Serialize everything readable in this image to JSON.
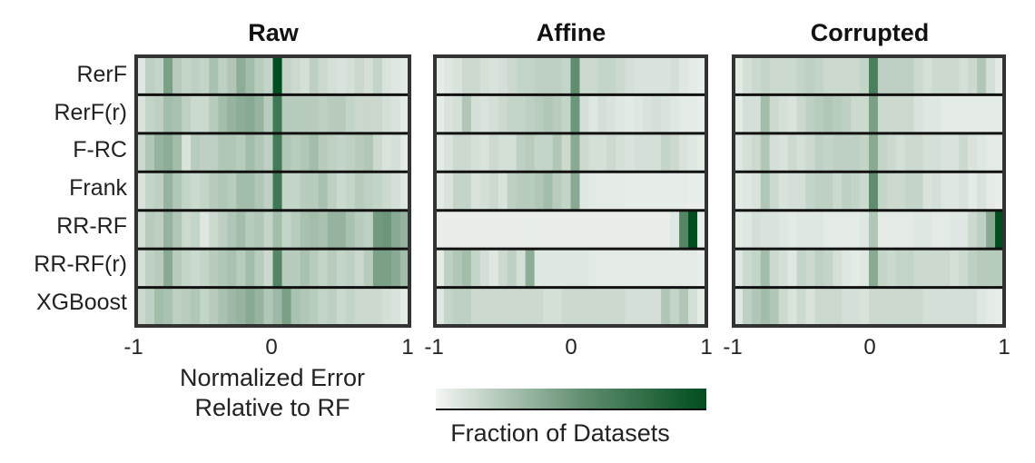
{
  "chart_data": {
    "type": "heatmap",
    "panels": [
      {
        "title": "Raw",
        "rows": [
          [
            0.08,
            0.2,
            0.18,
            0.45,
            0.22,
            0.18,
            0.2,
            0.18,
            0.28,
            0.2,
            0.25,
            0.38,
            0.3,
            0.22,
            0.18,
            1.0,
            0.18,
            0.15,
            0.12,
            0.2,
            0.15,
            0.12,
            0.1,
            0.12,
            0.16,
            0.12,
            0.18,
            0.1,
            0.08,
            0.06
          ],
          [
            0.1,
            0.18,
            0.2,
            0.3,
            0.28,
            0.2,
            0.15,
            0.15,
            0.22,
            0.3,
            0.35,
            0.38,
            0.4,
            0.35,
            0.22,
            0.7,
            0.22,
            0.22,
            0.22,
            0.22,
            0.2,
            0.22,
            0.22,
            0.18,
            0.16,
            0.16,
            0.16,
            0.12,
            0.1,
            0.06
          ],
          [
            0.15,
            0.25,
            0.35,
            0.38,
            0.3,
            0.1,
            0.22,
            0.2,
            0.2,
            0.25,
            0.25,
            0.22,
            0.3,
            0.25,
            0.2,
            0.68,
            0.25,
            0.22,
            0.25,
            0.3,
            0.22,
            0.2,
            0.18,
            0.2,
            0.22,
            0.25,
            0.15,
            0.1,
            0.12,
            0.06
          ],
          [
            0.1,
            0.18,
            0.2,
            0.35,
            0.25,
            0.18,
            0.15,
            0.18,
            0.22,
            0.25,
            0.22,
            0.3,
            0.3,
            0.25,
            0.2,
            0.7,
            0.18,
            0.18,
            0.22,
            0.22,
            0.28,
            0.2,
            0.15,
            0.18,
            0.22,
            0.2,
            0.18,
            0.15,
            0.12,
            0.08
          ],
          [
            0.12,
            0.22,
            0.2,
            0.35,
            0.25,
            0.15,
            0.18,
            0.08,
            0.15,
            0.2,
            0.25,
            0.3,
            0.22,
            0.25,
            0.18,
            0.3,
            0.18,
            0.22,
            0.28,
            0.3,
            0.28,
            0.35,
            0.35,
            0.28,
            0.22,
            0.2,
            0.48,
            0.5,
            0.4,
            0.35
          ],
          [
            0.12,
            0.2,
            0.22,
            0.4,
            0.22,
            0.18,
            0.15,
            0.18,
            0.22,
            0.25,
            0.28,
            0.22,
            0.3,
            0.22,
            0.15,
            0.6,
            0.22,
            0.22,
            0.28,
            0.22,
            0.18,
            0.22,
            0.18,
            0.2,
            0.16,
            0.22,
            0.45,
            0.45,
            0.4,
            0.3
          ],
          [
            0.15,
            0.2,
            0.3,
            0.28,
            0.2,
            0.22,
            0.25,
            0.18,
            0.22,
            0.28,
            0.32,
            0.35,
            0.4,
            0.35,
            0.25,
            0.32,
            0.45,
            0.28,
            0.25,
            0.22,
            0.18,
            0.2,
            0.15,
            0.18,
            0.15,
            0.15,
            0.15,
            0.12,
            0.1,
            0.06
          ]
        ]
      },
      {
        "title": "Affine",
        "rows": [
          [
            0.05,
            0.08,
            0.1,
            0.15,
            0.15,
            0.12,
            0.1,
            0.12,
            0.15,
            0.18,
            0.18,
            0.2,
            0.2,
            0.2,
            0.18,
            0.55,
            0.15,
            0.15,
            0.18,
            0.18,
            0.15,
            0.12,
            0.1,
            0.1,
            0.1,
            0.1,
            0.12,
            0.08,
            0.06,
            0.04
          ],
          [
            0.05,
            0.1,
            0.12,
            0.25,
            0.12,
            0.1,
            0.12,
            0.15,
            0.18,
            0.18,
            0.2,
            0.22,
            0.25,
            0.22,
            0.18,
            0.5,
            0.12,
            0.08,
            0.12,
            0.1,
            0.08,
            0.06,
            0.08,
            0.1,
            0.12,
            0.1,
            0.08,
            0.06,
            0.06,
            0.04
          ],
          [
            0.06,
            0.1,
            0.15,
            0.15,
            0.12,
            0.1,
            0.15,
            0.12,
            0.12,
            0.2,
            0.22,
            0.18,
            0.18,
            0.25,
            0.15,
            0.4,
            0.15,
            0.12,
            0.12,
            0.15,
            0.12,
            0.1,
            0.12,
            0.12,
            0.12,
            0.18,
            0.15,
            0.1,
            0.08,
            0.06
          ],
          [
            0.06,
            0.1,
            0.18,
            0.18,
            0.1,
            0.12,
            0.15,
            0.1,
            0.2,
            0.22,
            0.22,
            0.25,
            0.3,
            0.22,
            0.18,
            0.4,
            0.08,
            0.06,
            0.06,
            0.06,
            0.06,
            0.05,
            0.05,
            0.05,
            0.05,
            0.05,
            0.05,
            0.05,
            0.04,
            0.04
          ],
          [
            0.04,
            0.04,
            0.04,
            0.04,
            0.04,
            0.04,
            0.04,
            0.04,
            0.04,
            0.04,
            0.04,
            0.04,
            0.04,
            0.04,
            0.04,
            0.04,
            0.04,
            0.04,
            0.04,
            0.04,
            0.04,
            0.04,
            0.04,
            0.04,
            0.04,
            0.04,
            0.08,
            0.6,
            1.0,
            0.04
          ],
          [
            0.06,
            0.2,
            0.25,
            0.3,
            0.18,
            0.12,
            0.08,
            0.15,
            0.2,
            0.12,
            0.38,
            0.08,
            0.08,
            0.08,
            0.08,
            0.08,
            0.08,
            0.06,
            0.06,
            0.06,
            0.06,
            0.06,
            0.06,
            0.06,
            0.06,
            0.06,
            0.06,
            0.06,
            0.06,
            0.04
          ],
          [
            0.08,
            0.18,
            0.2,
            0.2,
            0.15,
            0.15,
            0.15,
            0.15,
            0.15,
            0.15,
            0.15,
            0.15,
            0.12,
            0.12,
            0.15,
            0.15,
            0.15,
            0.15,
            0.15,
            0.15,
            0.15,
            0.12,
            0.12,
            0.12,
            0.12,
            0.25,
            0.18,
            0.25,
            0.12,
            0.06
          ]
        ]
      },
      {
        "title": "Corrupted",
        "rows": [
          [
            0.06,
            0.12,
            0.15,
            0.18,
            0.15,
            0.15,
            0.15,
            0.18,
            0.2,
            0.18,
            0.15,
            0.15,
            0.15,
            0.15,
            0.18,
            0.65,
            0.2,
            0.2,
            0.2,
            0.2,
            0.15,
            0.12,
            0.15,
            0.15,
            0.15,
            0.12,
            0.15,
            0.25,
            0.12,
            0.06
          ],
          [
            0.06,
            0.12,
            0.12,
            0.3,
            0.15,
            0.12,
            0.1,
            0.15,
            0.2,
            0.22,
            0.25,
            0.22,
            0.2,
            0.15,
            0.15,
            0.45,
            0.15,
            0.15,
            0.15,
            0.15,
            0.1,
            0.08,
            0.08,
            0.06,
            0.06,
            0.06,
            0.06,
            0.06,
            0.06,
            0.06
          ],
          [
            0.08,
            0.12,
            0.15,
            0.25,
            0.12,
            0.1,
            0.15,
            0.12,
            0.15,
            0.2,
            0.18,
            0.2,
            0.2,
            0.2,
            0.18,
            0.4,
            0.18,
            0.15,
            0.12,
            0.15,
            0.15,
            0.12,
            0.12,
            0.1,
            0.1,
            0.15,
            0.1,
            0.08,
            0.06,
            0.06
          ],
          [
            0.06,
            0.08,
            0.1,
            0.25,
            0.15,
            0.1,
            0.12,
            0.12,
            0.18,
            0.2,
            0.2,
            0.15,
            0.2,
            0.18,
            0.15,
            0.55,
            0.18,
            0.15,
            0.15,
            0.18,
            0.18,
            0.1,
            0.12,
            0.08,
            0.08,
            0.1,
            0.06,
            0.1,
            0.06,
            0.04
          ],
          [
            0.06,
            0.08,
            0.12,
            0.1,
            0.1,
            0.08,
            0.06,
            0.08,
            0.08,
            0.08,
            0.06,
            0.06,
            0.06,
            0.06,
            0.08,
            0.25,
            0.06,
            0.06,
            0.06,
            0.06,
            0.08,
            0.08,
            0.06,
            0.06,
            0.08,
            0.08,
            0.15,
            0.2,
            0.4,
            1.0
          ],
          [
            0.08,
            0.15,
            0.18,
            0.3,
            0.15,
            0.12,
            0.08,
            0.18,
            0.15,
            0.2,
            0.18,
            0.12,
            0.08,
            0.06,
            0.08,
            0.4,
            0.18,
            0.15,
            0.18,
            0.18,
            0.15,
            0.15,
            0.15,
            0.15,
            0.12,
            0.15,
            0.2,
            0.22,
            0.22,
            0.22
          ],
          [
            0.08,
            0.2,
            0.25,
            0.3,
            0.25,
            0.15,
            0.1,
            0.15,
            0.1,
            0.15,
            0.15,
            0.15,
            0.12,
            0.12,
            0.1,
            0.15,
            0.15,
            0.15,
            0.15,
            0.15,
            0.15,
            0.12,
            0.12,
            0.12,
            0.12,
            0.12,
            0.12,
            0.08,
            0.06,
            0.04
          ]
        ]
      }
    ],
    "row_labels": [
      "RerF",
      "RerF(r)",
      "F-RC",
      "Frank",
      "RR-RF",
      "RR-RF(r)",
      "XGBoost"
    ],
    "x_range": [
      -1,
      1
    ],
    "x_ticks": [
      "-1",
      "0",
      "1"
    ],
    "xlabel_line1": "Normalized Error",
    "xlabel_line2": "Relative to RF",
    "colorbar_label": "Fraction of Datasets",
    "colormap": {
      "low": "#f4f6f4",
      "mid": "#5f8d6e",
      "high": "#004d1f"
    }
  }
}
